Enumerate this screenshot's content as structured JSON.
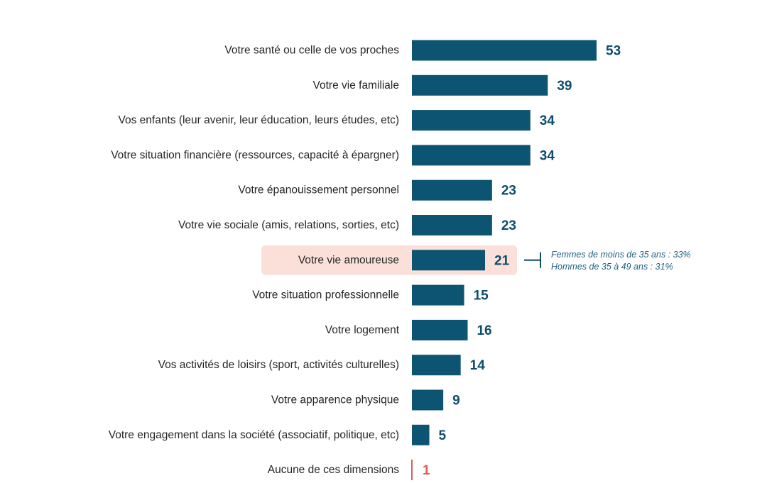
{
  "chart_data": {
    "type": "bar",
    "orientation": "horizontal",
    "categories": [
      "Votre santé ou celle de vos proches",
      "Votre vie familiale",
      "Vos enfants (leur avenir, leur éducation, leurs études, etc)",
      "Votre situation financière (ressources, capacité à épargner)",
      "Votre épanouissement personnel",
      "Votre vie sociale (amis, relations, sorties, etc)",
      "Votre vie amoureuse",
      "Votre situation professionnelle",
      "Votre logement",
      "Vos activités de loisirs (sport, activités culturelles)",
      "Votre apparence physique",
      "Votre engagement dans la société (associatif, politique, etc)",
      "Aucune de ces dimensions"
    ],
    "values": [
      53,
      39,
      34,
      34,
      23,
      23,
      21,
      15,
      16,
      14,
      9,
      5,
      1
    ],
    "highlight_index": 6,
    "annotation": {
      "category_index": 6,
      "lines": [
        "Femmes de moins de 35 ans : 33%",
        "Hommes de 35 à 49 ans : 31%"
      ]
    },
    "colors": {
      "bar": "#0d5472",
      "value_text": "#0d4d6b",
      "highlight_bg": "#fbe0da",
      "none_color": "#e05a5a",
      "annotation_text": "#1f5f7f"
    },
    "title": "",
    "xlabel": "",
    "ylabel": "",
    "grid": false
  }
}
